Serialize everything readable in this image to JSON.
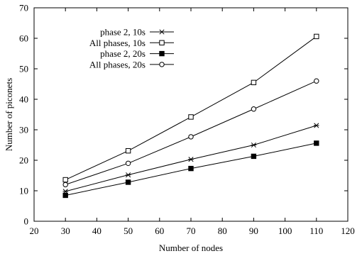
{
  "chart_data": {
    "type": "line",
    "title": "",
    "xlabel": "Number of nodes",
    "ylabel": "Number of piconets",
    "xlim": [
      20,
      120
    ],
    "ylim": [
      0,
      70
    ],
    "xticks": [
      20,
      30,
      40,
      50,
      60,
      70,
      80,
      90,
      100,
      110,
      120
    ],
    "yticks": [
      0,
      10,
      20,
      30,
      40,
      50,
      60,
      70
    ],
    "x": [
      30,
      50,
      70,
      90,
      110
    ],
    "grid": false,
    "legend_position": "top-left",
    "series": [
      {
        "name": "phase 2, 10s",
        "marker": "asterisk",
        "values": [
          9.8,
          15.2,
          20.3,
          25.0,
          31.4
        ]
      },
      {
        "name": "All phases, 10s",
        "marker": "open-square",
        "values": [
          13.6,
          23.1,
          34.2,
          45.5,
          60.6
        ]
      },
      {
        "name": "phase 2, 20s",
        "marker": "filled-square",
        "values": [
          8.5,
          12.8,
          17.3,
          21.3,
          25.6
        ]
      },
      {
        "name": "All phases, 20s",
        "marker": "open-circle",
        "values": [
          12.0,
          19.0,
          27.7,
          36.8,
          46.0
        ]
      }
    ],
    "colors": {
      "line": "#000000",
      "background": "#ffffff"
    }
  }
}
